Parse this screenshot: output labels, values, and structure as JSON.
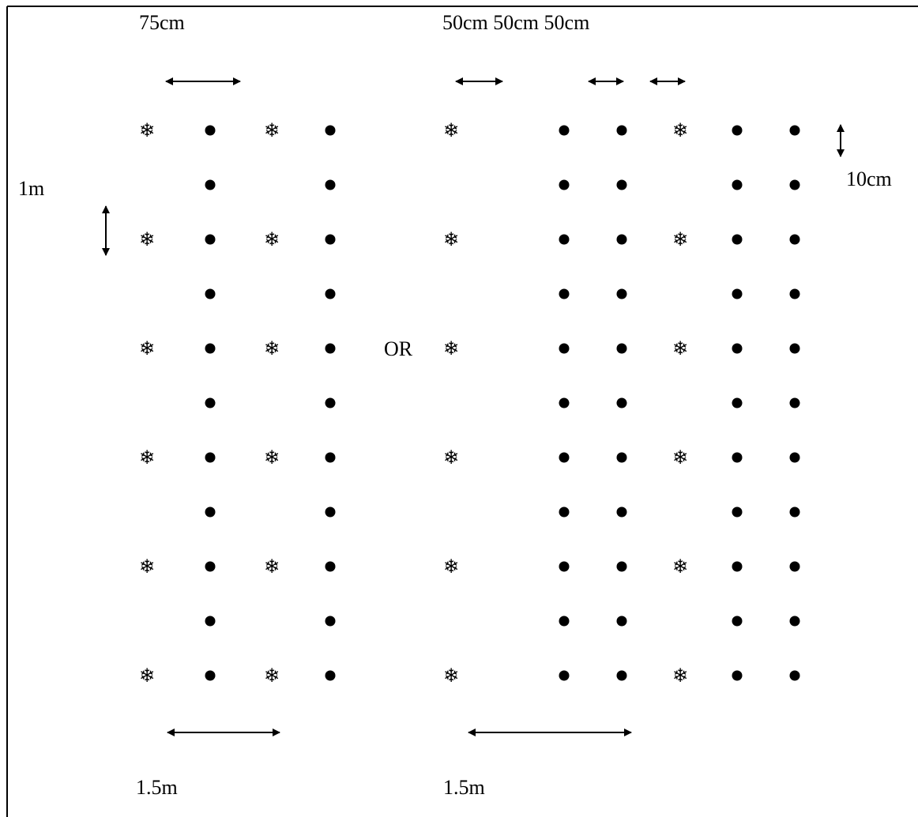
{
  "labels": {
    "left_top_spacing": "75cm",
    "right_top_spacing": "50cm 50cm 50cm",
    "row_spacing_left": "1m",
    "row_spacing_right": "10cm",
    "left_bottom_width": "1.5m",
    "right_bottom_width": "1.5m",
    "or_text": "OR"
  },
  "symbols": {
    "tree_glyph": "❄",
    "crop_glyph": "●",
    "tree_icon": "snowflake-icon",
    "crop_icon": "filled-circle-icon"
  },
  "layout_rows": {
    "total_rows": 11,
    "tree_every_n_rows": 2
  },
  "colors": {
    "ink": "#000000",
    "background": "#ffffff"
  }
}
